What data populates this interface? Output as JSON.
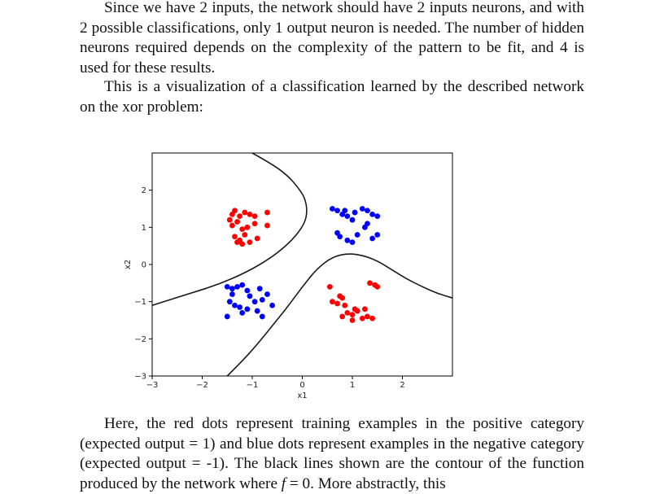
{
  "text": {
    "p1": "Since we have 2 inputs, the network should have 2 inputs neurons, and with 2 possible classifications, only 1 output neuron is needed. The number of hidden neurons required depends on the complexity of the pattern to be fit, and 4 is used for these results.",
    "p2": "This is a visualization of a classification learned by the described network on the xor problem:",
    "p3_part1": "Here, the red dots represent training examples in the positive category (expected output = 1) and blue dots represent examples in the negative category (expected output = -1). The black lines shown are the contour of the function produced by the network where ",
    "p3_math": "f",
    "p3_part2": " = 0. More abstractly, this"
  },
  "chart_data": {
    "type": "scatter",
    "xlabel": "x1",
    "ylabel": "x2",
    "xlim": [
      -3,
      3
    ],
    "ylim": [
      -3,
      3
    ],
    "xticks": [
      -3,
      -2,
      -1,
      0,
      1,
      2
    ],
    "yticks": [
      -3,
      -2,
      -1,
      0,
      1,
      2
    ],
    "grid": false,
    "colors": {
      "positive": "#ff0000",
      "negative": "#0000ff",
      "contour": "#1a1a1a"
    },
    "series": [
      {
        "color": "#ff0000",
        "x": [
          -1.45,
          -1.4,
          -1.35,
          -1.25,
          -1.15,
          -1.05,
          -0.95,
          -0.7,
          -1.4,
          -1.3,
          -1.1,
          -0.95,
          -1.2,
          -1.35,
          -1.25,
          -1.3,
          -1.2,
          -1.05,
          -0.9,
          -0.7,
          -1.15,
          0.55,
          0.6,
          0.7,
          0.75,
          0.8,
          0.85,
          0.9,
          1.0,
          1.05,
          1.1,
          1.2,
          1.3,
          1.35,
          1.4,
          1.45,
          1.5,
          1.25,
          1.0,
          0.8
        ],
        "y": [
          1.2,
          1.35,
          1.45,
          1.3,
          1.4,
          1.35,
          1.3,
          1.4,
          1.05,
          1.15,
          1.0,
          1.1,
          0.95,
          0.75,
          0.65,
          0.6,
          0.55,
          0.6,
          0.7,
          1.05,
          0.8,
          -0.6,
          -1.0,
          -1.05,
          -0.85,
          -0.9,
          -1.1,
          -1.3,
          -1.5,
          -1.2,
          -1.25,
          -1.45,
          -1.4,
          -0.5,
          -1.45,
          -0.55,
          -0.6,
          -1.2,
          -1.35,
          -1.4
        ]
      },
      {
        "color": "#0000ff",
        "x": [
          0.6,
          0.7,
          0.8,
          0.9,
          1.0,
          1.05,
          1.2,
          1.3,
          1.4,
          1.5,
          0.7,
          0.75,
          0.9,
          1.0,
          1.1,
          1.25,
          1.4,
          1.5,
          0.85,
          1.3,
          -1.5,
          -1.4,
          -1.3,
          -1.2,
          -1.1,
          -0.85,
          -0.7,
          -1.45,
          -1.35,
          -1.25,
          -1.1,
          -0.95,
          -0.8,
          -0.6,
          -1.5,
          -1.2,
          -0.9,
          -0.8,
          -1.4,
          -1.05
        ],
        "y": [
          1.5,
          1.45,
          1.35,
          1.3,
          1.2,
          1.4,
          1.5,
          1.45,
          1.35,
          1.3,
          0.85,
          0.75,
          0.65,
          0.6,
          0.8,
          1.0,
          0.7,
          0.8,
          1.45,
          1.1,
          -0.6,
          -0.65,
          -0.6,
          -0.55,
          -0.7,
          -0.65,
          -0.8,
          -1.0,
          -1.1,
          -1.15,
          -1.2,
          -1.0,
          -0.95,
          -1.1,
          -1.4,
          -1.3,
          -1.25,
          -1.4,
          -0.8,
          -0.85
        ]
      }
    ],
    "contours": [
      {
        "x": [
          -1.0,
          -0.6,
          -0.3,
          -0.1,
          0.05,
          0.1,
          0.05,
          -0.2,
          -0.6,
          -1.1,
          -1.7,
          -2.3,
          -3.0
        ],
        "y": [
          3.0,
          2.7,
          2.4,
          2.1,
          1.8,
          1.45,
          1.1,
          0.65,
          0.2,
          -0.2,
          -0.55,
          -0.8,
          -1.1
        ]
      },
      {
        "x": [
          -1.5,
          -1.2,
          -0.9,
          -0.6,
          -0.3,
          0.0,
          0.3,
          0.6,
          0.9,
          1.2,
          1.5,
          1.8,
          2.1,
          2.4,
          2.7,
          3.0
        ],
        "y": [
          -3.0,
          -2.6,
          -2.15,
          -1.65,
          -1.15,
          -0.6,
          -0.1,
          0.2,
          0.3,
          0.25,
          0.1,
          -0.15,
          -0.4,
          -0.6,
          -0.78,
          -0.9
        ]
      }
    ]
  }
}
